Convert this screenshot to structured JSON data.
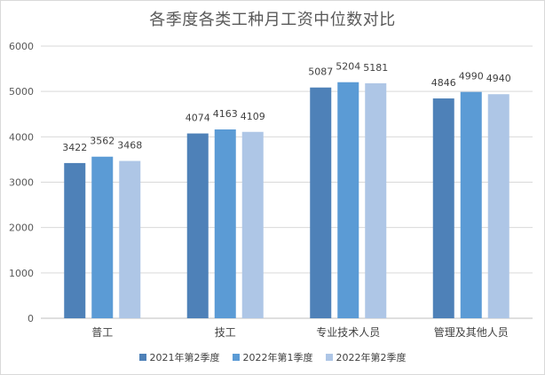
{
  "chart_data": {
    "type": "bar",
    "title": "各季度各类工种月工资中位数对比",
    "categories": [
      "普工",
      "技工",
      "专业技术人员",
      "管理及其他人员"
    ],
    "series": [
      {
        "name": "2021年第2季度",
        "color": "#4e81b8",
        "values": [
          3422,
          4074,
          5087,
          4846
        ]
      },
      {
        "name": "2022年第1季度",
        "color": "#5b9bd5",
        "values": [
          3562,
          4163,
          5204,
          4990
        ]
      },
      {
        "name": "2022年第2季度",
        "color": "#aec6e6",
        "values": [
          3468,
          4109,
          5181,
          4940
        ]
      }
    ],
    "ylim": [
      0,
      6000
    ],
    "yticks": [
      0,
      1000,
      2000,
      3000,
      4000,
      5000,
      6000
    ],
    "grid": true,
    "legend_position": "bottom"
  }
}
